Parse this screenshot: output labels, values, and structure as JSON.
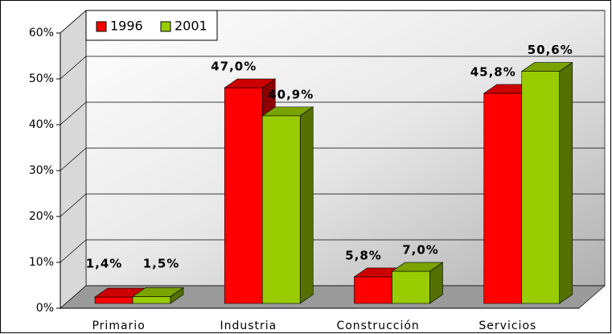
{
  "chart_data": {
    "type": "bar3d",
    "categories": [
      "Primario",
      "Industria",
      "Construcción",
      "Servicios"
    ],
    "series": [
      {
        "name": "1996",
        "color": "#ff0000",
        "values": [
          1.4,
          47.0,
          5.8,
          45.8
        ],
        "value_labels": [
          "1,4%",
          "47,0%",
          "5,8%",
          "45,8%"
        ]
      },
      {
        "name": "2001",
        "color": "#99cc00",
        "values": [
          1.5,
          40.9,
          7.0,
          50.6
        ],
        "value_labels": [
          "1,5%",
          "40,9%",
          "7,0%",
          "50,6%"
        ]
      }
    ],
    "ylim": [
      0,
      60
    ],
    "yticks": [
      {
        "value": 0,
        "label": "0%"
      },
      {
        "value": 10,
        "label": "10%"
      },
      {
        "value": 20,
        "label": "20%"
      },
      {
        "value": 30,
        "label": "30%"
      },
      {
        "value": 40,
        "label": "40%"
      },
      {
        "value": 50,
        "label": "50%"
      },
      {
        "value": 60,
        "label": "60%"
      }
    ],
    "grid": true,
    "legend": "top-left"
  }
}
